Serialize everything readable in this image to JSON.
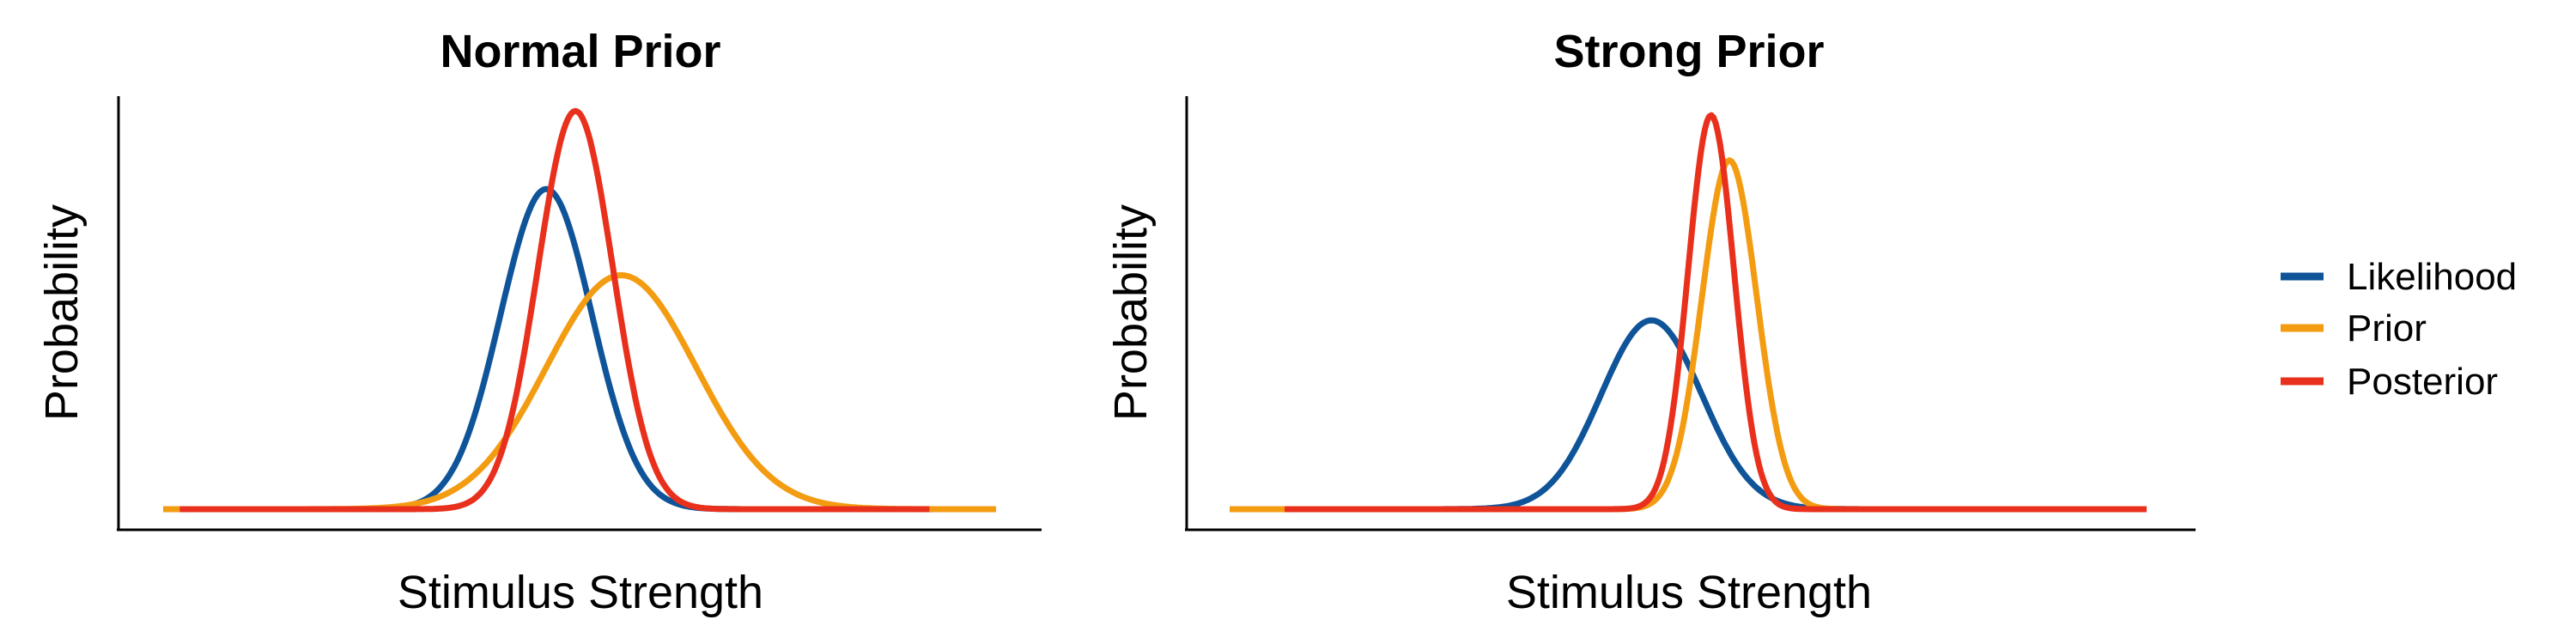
{
  "chart_data": [
    {
      "type": "line",
      "title": "Normal Prior",
      "xlabel": "Stimulus Strength",
      "ylabel": "Probability",
      "xlim": [
        0,
        100
      ],
      "ylim": [
        0,
        1
      ],
      "grid": false,
      "axis_ticks": false,
      "series": [
        {
          "name": "Likelihood",
          "color": "#0f5499",
          "x_range": [
            0,
            95
          ],
          "mean": 46,
          "sd": 5.5,
          "peak": 0.78
        },
        {
          "name": "Prior",
          "color": "#f39c12",
          "x_range": [
            0,
            100
          ],
          "mean": 55,
          "sd": 9.0,
          "peak": 0.57
        },
        {
          "name": "Posterior",
          "color": "#e8301c",
          "x_range": [
            2,
            92
          ],
          "mean": 49.5,
          "sd": 4.5,
          "peak": 0.97
        }
      ]
    },
    {
      "type": "line",
      "title": "Strong Prior",
      "xlabel": "Stimulus Strength",
      "ylabel": "Probability",
      "xlim": [
        0,
        100
      ],
      "ylim": [
        0,
        1
      ],
      "grid": false,
      "axis_ticks": false,
      "series": [
        {
          "name": "Likelihood",
          "color": "#0f5499",
          "x_range": [
            0,
            100
          ],
          "mean": 46,
          "sd": 5.5,
          "peak": 0.46
        },
        {
          "name": "Prior",
          "color": "#f39c12",
          "x_range": [
            0,
            100
          ],
          "mean": 54.5,
          "sd": 3.0,
          "peak": 0.85
        },
        {
          "name": "Posterior",
          "color": "#e8301c",
          "x_range": [
            6,
            100
          ],
          "mean": 52.5,
          "sd": 2.5,
          "peak": 0.96
        }
      ]
    }
  ],
  "legend": {
    "position": "right",
    "items": [
      {
        "label": "Likelihood",
        "color": "#0f5499"
      },
      {
        "label": "Prior",
        "color": "#f39c12"
      },
      {
        "label": "Posterior",
        "color": "#e8301c"
      }
    ]
  }
}
